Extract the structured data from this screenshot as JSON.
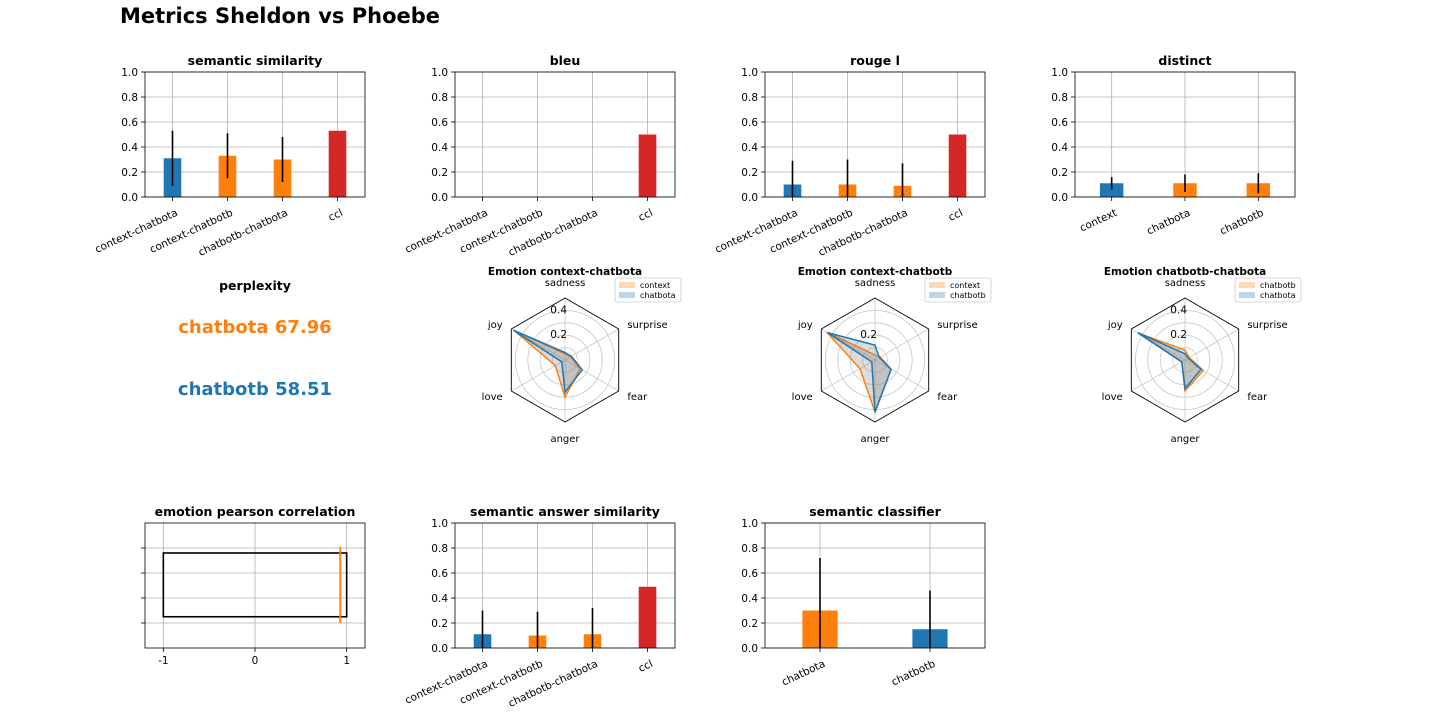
{
  "figure": {
    "title": "Metrics Sheldon vs Phoebe",
    "perplexity": {
      "title": "perplexity",
      "lines": [
        {
          "text": "chatbota 67.96",
          "color": "#ff7f0e"
        },
        {
          "text": "chatbotb 58.51",
          "color": "#1f77b4"
        }
      ]
    }
  },
  "chart_data": [
    {
      "type": "bar",
      "title": "semantic similarity",
      "categories": [
        "context-chatbota",
        "context-chatbotb",
        "chatbotb-chatbota",
        "ccl"
      ],
      "values": [
        0.31,
        0.33,
        0.3,
        0.53
      ],
      "errors": [
        0.22,
        0.18,
        0.18,
        null
      ],
      "colors": [
        "#1f77b4",
        "#ff7f0e",
        "#ff7f0e",
        "#d62728"
      ],
      "ylim": [
        0,
        1
      ],
      "yticks": [
        "0.0",
        "0.2",
        "0.4",
        "0.6",
        "0.8",
        "1.0"
      ],
      "grid": true
    },
    {
      "type": "bar",
      "title": "bleu",
      "categories": [
        "context-chatbota",
        "context-chatbotb",
        "chatbotb-chatbota",
        "ccl"
      ],
      "values": [
        0,
        0,
        0,
        0.5
      ],
      "errors": [
        null,
        null,
        null,
        null
      ],
      "colors": [
        "#1f77b4",
        "#ff7f0e",
        "#ff7f0e",
        "#d62728"
      ],
      "ylim": [
        0,
        1
      ],
      "yticks": [
        "0.0",
        "0.2",
        "0.4",
        "0.6",
        "0.8",
        "1.0"
      ],
      "grid": true
    },
    {
      "type": "bar",
      "title": "rouge l",
      "categories": [
        "context-chatbota",
        "context-chatbotb",
        "chatbotb-chatbota",
        "ccl"
      ],
      "values": [
        0.1,
        0.1,
        0.09,
        0.5
      ],
      "errors": [
        0.19,
        0.2,
        0.18,
        null
      ],
      "colors": [
        "#1f77b4",
        "#ff7f0e",
        "#ff7f0e",
        "#d62728"
      ],
      "ylim": [
        0,
        1
      ],
      "yticks": [
        "0.0",
        "0.2",
        "0.4",
        "0.6",
        "0.8",
        "1.0"
      ],
      "grid": true
    },
    {
      "type": "bar",
      "title": "distinct",
      "categories": [
        "context",
        "chatbota",
        "chatbotb"
      ],
      "values": [
        0.11,
        0.11,
        0.11
      ],
      "errors": [
        0.05,
        0.07,
        0.08
      ],
      "colors": [
        "#1f77b4",
        "#ff7f0e",
        "#ff7f0e"
      ],
      "ylim": [
        0,
        1
      ],
      "yticks": [
        "0.0",
        "0.2",
        "0.4",
        "0.6",
        "0.8",
        "1.0"
      ],
      "grid": true
    },
    {
      "type": "radar",
      "title": "Emotion context-chatbota",
      "axes": [
        "sadness",
        "surprise",
        "fear",
        "anger",
        "love",
        "joy"
      ],
      "rlim": [
        0,
        0.5
      ],
      "rticks": [
        "0.2",
        "0.4"
      ],
      "series": [
        {
          "name": "context",
          "values": [
            0.05,
            0.05,
            0.14,
            0.3,
            0.09,
            0.47
          ],
          "color": "#ff7f0e"
        },
        {
          "name": "chatbota",
          "values": [
            0.06,
            0.06,
            0.16,
            0.26,
            0.03,
            0.48
          ],
          "color": "#1f77b4"
        }
      ]
    },
    {
      "type": "radar",
      "title": "Emotion context-chatbotb",
      "axes": [
        "sadness",
        "surprise",
        "fear",
        "anger",
        "love",
        "joy"
      ],
      "rlim": [
        0,
        0.5
      ],
      "rticks": [
        "0.2"
      ],
      "series": [
        {
          "name": "context",
          "values": [
            0.04,
            0.05,
            0.15,
            0.42,
            0.14,
            0.45
          ],
          "color": "#ff7f0e"
        },
        {
          "name": "chatbotb",
          "values": [
            0.12,
            0.04,
            0.15,
            0.42,
            0.03,
            0.44
          ],
          "color": "#1f77b4"
        }
      ]
    },
    {
      "type": "radar",
      "title": "Emotion chatbotb-chatbota",
      "axes": [
        "sadness",
        "surprise",
        "fear",
        "anger",
        "love",
        "joy"
      ],
      "rlim": [
        0,
        0.5
      ],
      "rticks": [
        "0.2",
        "0.4"
      ],
      "series": [
        {
          "name": "chatbotb",
          "values": [
            0.08,
            0.04,
            0.17,
            0.25,
            0.03,
            0.43
          ],
          "color": "#ff7f0e"
        },
        {
          "name": "chatbota",
          "values": [
            0.05,
            0.03,
            0.15,
            0.23,
            0.03,
            0.44
          ],
          "color": "#1f77b4"
        }
      ]
    },
    {
      "type": "box",
      "title": "emotion pearson correlation",
      "xlim": [
        -1.2,
        1.2
      ],
      "xticks": [
        -1,
        0,
        1
      ],
      "xtick_labels": [
        "-1",
        "0",
        "1"
      ],
      "box": {
        "q1": -1.0,
        "q3": 1.0,
        "median": 0.93,
        "whisker_low": -1.0,
        "whisker_high": 1.0
      },
      "grid": true
    },
    {
      "type": "bar",
      "title": "semantic answer similarity",
      "categories": [
        "context-chatbota",
        "context-chatbotb",
        "chatbotb-chatbota",
        "ccl"
      ],
      "values": [
        0.11,
        0.1,
        0.11,
        0.49
      ],
      "errors": [
        0.19,
        0.19,
        0.21,
        null
      ],
      "colors": [
        "#1f77b4",
        "#ff7f0e",
        "#ff7f0e",
        "#d62728"
      ],
      "ylim": [
        0,
        1
      ],
      "yticks": [
        "0.0",
        "0.2",
        "0.4",
        "0.6",
        "0.8",
        "1.0"
      ],
      "grid": true
    },
    {
      "type": "bar",
      "title": "semantic classifier",
      "categories": [
        "chatbota",
        "chatbotb"
      ],
      "values": [
        0.3,
        0.15
      ],
      "errors": [
        0.42,
        0.31
      ],
      "colors": [
        "#ff7f0e",
        "#1f77b4"
      ],
      "ylim": [
        0,
        1
      ],
      "yticks": [
        "0.0",
        "0.2",
        "0.4",
        "0.6",
        "0.8",
        "1.0"
      ],
      "grid": true
    }
  ]
}
